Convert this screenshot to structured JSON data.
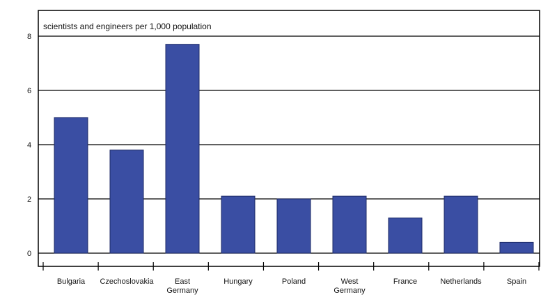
{
  "chart_data": {
    "type": "bar",
    "title": "scientists and engineers per 1,000 population",
    "xlabel": "",
    "ylabel": "",
    "ylim": [
      0,
      8
    ],
    "yticks": [
      0,
      2,
      4,
      6,
      8
    ],
    "grid": true,
    "categories": [
      [
        "Bulgaria"
      ],
      [
        "Czechoslovakia"
      ],
      [
        "East",
        "Germany"
      ],
      [
        "Hungary"
      ],
      [
        "Poland"
      ],
      [
        "West",
        "Germany"
      ],
      [
        "France"
      ],
      [
        "Netherlands"
      ],
      [
        "Spain"
      ]
    ],
    "values": [
      5.0,
      3.8,
      7.7,
      2.1,
      2.0,
      2.1,
      1.3,
      2.1,
      0.4
    ],
    "colors": {
      "bar": "#3a4ea3",
      "bar_stroke": "#1c2a66",
      "frame": "#000000",
      "grid": "#000000"
    }
  }
}
